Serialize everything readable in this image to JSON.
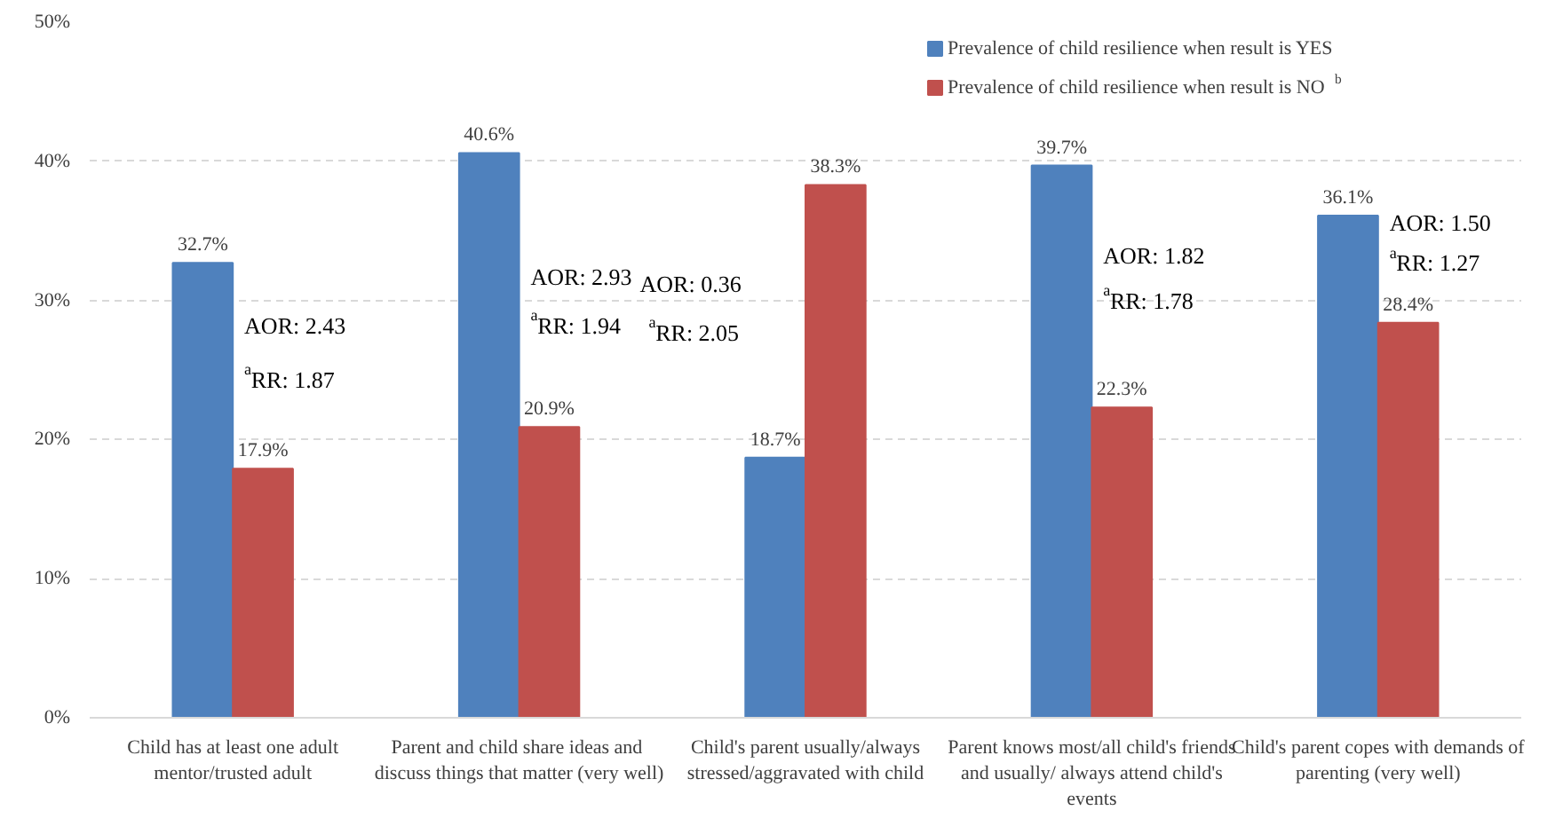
{
  "chart_data": {
    "type": "bar",
    "categories": [
      "Child has at least one adult mentor/trusted adult",
      "Parent and child  share ideas and discuss things that matter (very well)",
      "Child's parent usually/always stressed/aggravated with child",
      "Parent knows most/all child's friends and usually/ always attend child's events",
      "Child's parent copes with demands of parenting (very well)"
    ],
    "series": [
      {
        "name": "Prevalence of child resilience when result is YES",
        "color": "#4f81bd",
        "values": [
          32.7,
          40.6,
          18.7,
          39.7,
          36.1
        ]
      },
      {
        "name": "Prevalence of child resilience when result is NO$^{b}$",
        "color": "#c0504d",
        "values": [
          17.9,
          20.9,
          38.3,
          22.3,
          28.4
        ]
      }
    ],
    "ylim": [
      0,
      50
    ],
    "yticks": [
      {
        "value": 0,
        "label": "0%"
      },
      {
        "value": 10,
        "label": "10%"
      },
      {
        "value": 20,
        "label": "20%"
      },
      {
        "value": 30,
        "label": "30%"
      },
      {
        "value": 40,
        "label": "40%"
      },
      {
        "value": 50,
        "label": "50%"
      }
    ],
    "value_labels": [
      [
        "32.7%",
        "40.6%",
        "18.7%",
        "39.7%",
        "36.1%"
      ],
      [
        "17.9%",
        "20.9%",
        "38.3%",
        "22.3%",
        "28.4%"
      ]
    ],
    "annotations": [
      {
        "text": "AOR: 2.43",
        "x": "Child has at least one adult mentor/trusted adult",
        "y": 28.2
      },
      {
        "text": "$^{a}$RR: 1.87",
        "x": "Child has at least one adult mentor/trusted adult",
        "y": 24.3
      },
      {
        "text": "AOR: 2.93",
        "x": "Parent and child  share ideas and discuss things that matter (very well)",
        "y": 31.7
      },
      {
        "text": "$^{a}$RR: 1.94",
        "x": "Parent and child  share ideas and discuss things that matter (very well)",
        "y": 28.2
      },
      {
        "text": "AOR: 0.36",
        "x": "Child's parent usually/always stressed/aggravated with child",
        "y": 31.2
      },
      {
        "text": "$^{a}$RR: 2.05",
        "x": "Child's parent usually/always stressed/aggravated with child",
        "y": 27.7
      },
      {
        "text": "AOR: 1.82",
        "x": "Parent knows most/all child's friends and usually/ always attend child's events",
        "y": 33.2
      },
      {
        "text": "$^{a}$RR: 1.78",
        "x": "Parent knows most/all child's friends and usually/ always attend child's events",
        "y": 30.0
      },
      {
        "text": "AOR: 1.50",
        "x": "Child's parent copes with demands of parenting (very well)",
        "y": 35.6
      },
      {
        "text": "$^{a}$RR: 1.27",
        "x": "Child's parent copes with demands of parenting (very well)",
        "y": 32.7
      }
    ],
    "grid": "y",
    "legend": "top right"
  }
}
